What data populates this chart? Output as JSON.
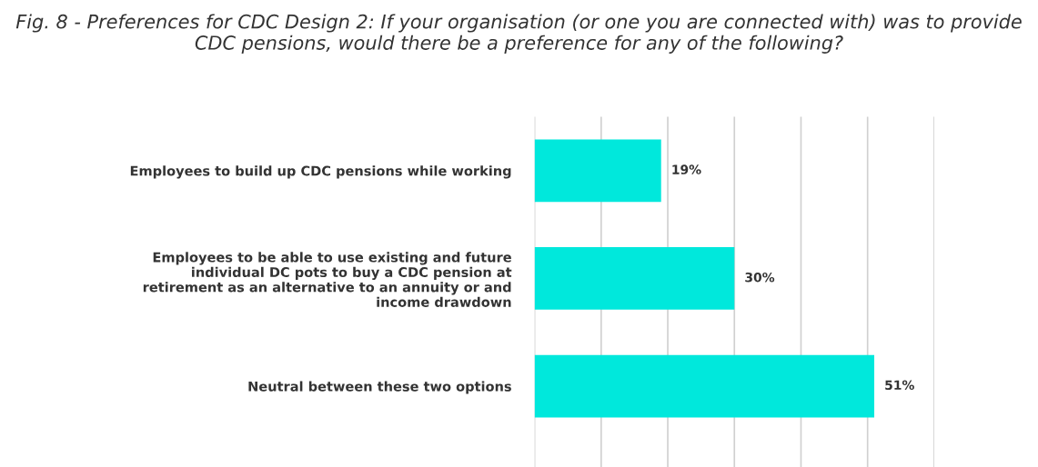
{
  "chart_data": {
    "type": "bar",
    "orientation": "horizontal",
    "title": "Fig. 8 - Preferences for CDC Design 2: If your organisation (or one you are connected with) was to provide CDC pensions, would there be a preference for any of the following?",
    "categories": [
      "Employees to build up CDC pensions while working",
      "Employees to be able to use existing and future individual DC pots to buy a CDC pension at retirement as an alternative to an annuity or and income drawdown",
      "Neutral between these two options"
    ],
    "values": [
      19,
      30,
      51
    ],
    "color": "#00e8dc",
    "value_labels": [
      "19%",
      "30%",
      "51%"
    ],
    "xlim": [
      0,
      60
    ],
    "xticks": [
      {
        "value": 0,
        "label": null
      },
      {
        "value": 10,
        "label": null
      },
      {
        "value": 20,
        "label": null
      },
      {
        "value": 30,
        "label": null
      },
      {
        "value": 40,
        "label": null
      },
      {
        "value": 50,
        "label": null
      },
      {
        "value": 60,
        "label": null
      }
    ],
    "tick_labels": "y",
    "grid": "x",
    "legend": false
  }
}
